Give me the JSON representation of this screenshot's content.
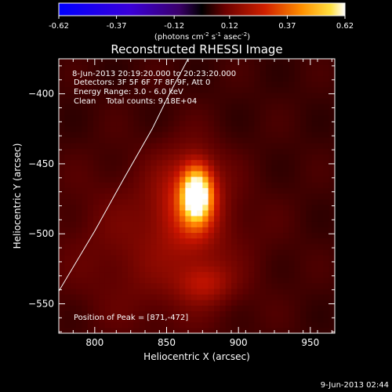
{
  "chart_data": {
    "type": "heatmap",
    "title": "Reconstructed RHESSI Image",
    "colorbar": {
      "ticks": [
        "-0.62",
        "-0.37",
        "-0.12",
        "0.12",
        "0.37",
        "0.62"
      ],
      "tick_values": [
        -0.62,
        -0.37,
        -0.12,
        0.12,
        0.37,
        0.62
      ],
      "range": [
        -0.62,
        0.62
      ],
      "label_main": "(photons cm",
      "label_sup1": "-2",
      "label_mid1": " s",
      "label_sup2": "-1",
      "label_mid2": " asec",
      "label_sup3": "-2",
      "label_end": ")",
      "colormap": "rhessi-blue-purple-red-yellow-white"
    },
    "xlabel": "Heliocentric X (arcsec)",
    "ylabel": "Heliocentric Y (arcsec)",
    "xlim": [
      775,
      967
    ],
    "ylim": [
      -571,
      -375
    ],
    "xticks": [
      800,
      850,
      900,
      950
    ],
    "yticks": [
      -400,
      -450,
      -500,
      -550
    ],
    "xtick_labels": [
      "800",
      "850",
      "900",
      "950"
    ],
    "ytick_labels": [
      "−400",
      "−450",
      "−500",
      "−550"
    ],
    "annotations": {
      "time": " 8-Jun-2013 20:19:20.000 to 20:23:20.000",
      "detectors": "Detectors: 3F 5F 6F 7F 8F 9F, Att 0",
      "energy": "Energy Range: 3.0 - 6.0 keV",
      "clean": "Clean    Total counts: 9.18E+04",
      "peak": "Position of Peak = [871,-472]"
    },
    "sources": [
      {
        "x": 871,
        "y": -472,
        "sx": 7,
        "sy": 13,
        "amp": 0.56
      },
      {
        "x": 866,
        "y": -476,
        "sx": 16,
        "sy": 24,
        "amp": 0.18
      },
      {
        "x": 876,
        "y": -535,
        "sx": 13,
        "sy": 10,
        "amp": 0.12
      },
      {
        "x": 845,
        "y": -510,
        "sx": 45,
        "sy": 40,
        "amp": 0.08
      }
    ],
    "background_level": 0.06,
    "limb": [
      [
        775,
        -541
      ],
      [
        800,
        -498
      ],
      [
        820,
        -461
      ],
      [
        840,
        -425
      ],
      [
        852,
        -400
      ],
      [
        865,
        -375
      ]
    ],
    "peak": [
      871,
      -472
    ]
  },
  "footer": {
    "timestamp": "9-Jun-2013 02:44"
  }
}
